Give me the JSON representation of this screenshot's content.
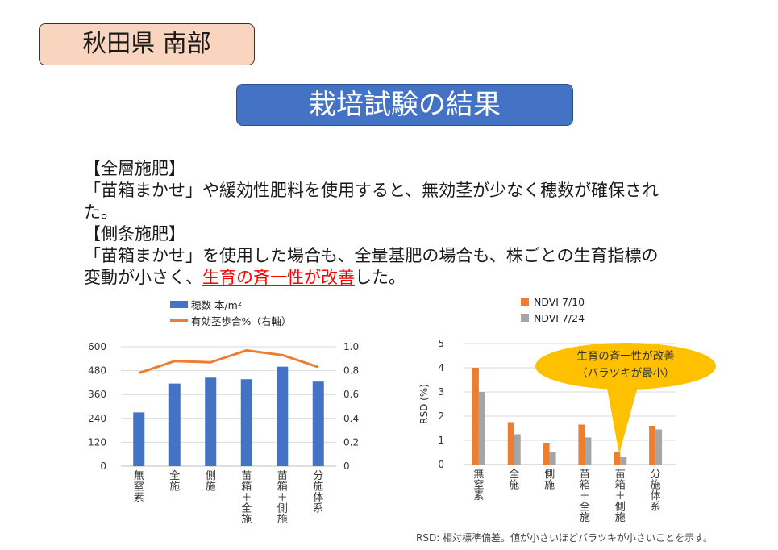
{
  "header": {
    "region_tag": "秋田県 南部",
    "banner_title": "栽培試験の結果"
  },
  "body_text": {
    "heading_1": "【全層施肥】",
    "text_1": "「苗箱まかせ」や緩効性肥料を使用すると、無効茎が少なく穂数が確保された。",
    "heading_2": "【側条施肥】",
    "text_2_a": "「苗箱まかせ」を使用した場合も、全量基肥の場合も、株ごとの生育指標の変動が小さく、",
    "text_2_highlight": "生育の斉一性が改善",
    "text_2_b": "した。"
  },
  "colors": {
    "bar_blue": "#4472c4",
    "line_orange": "#ed7d31",
    "bar_gray": "#a5a5a5",
    "highlight_red": "#ff0000",
    "callout_yellow": "#ffc000"
  },
  "chart_data": [
    {
      "type": "bar",
      "categories": [
        "無窒素",
        "全施",
        "側施",
        "苗箱+全施",
        "苗箱+側施",
        "分施体系"
      ],
      "series": [
        {
          "name": "穂数 本/m²",
          "type": "bar",
          "axis": "left",
          "values": [
            270,
            415,
            445,
            437,
            500,
            425
          ]
        },
        {
          "name": "有効茎歩合%（右軸）",
          "type": "line",
          "axis": "right",
          "values": [
            0.78,
            0.88,
            0.87,
            0.97,
            0.93,
            0.83
          ]
        }
      ],
      "ylim": [
        0,
        600
      ],
      "y_ticks": [
        "0",
        "120",
        "240",
        "360",
        "480",
        "600"
      ],
      "y2lim": [
        0,
        1.0
      ],
      "y2_ticks": [
        "0",
        "0.2",
        "0.4",
        "0.6",
        "0.8",
        "1.0"
      ],
      "legend_position": "top",
      "grid": true
    },
    {
      "type": "bar",
      "categories": [
        "無窒素",
        "全施",
        "側施",
        "苗箱+全施",
        "苗箱+側施",
        "分施体系"
      ],
      "series": [
        {
          "name": "NDVI 7/10",
          "values": [
            4.0,
            1.75,
            0.9,
            1.65,
            0.5,
            1.6
          ]
        },
        {
          "name": "NDVI 7/24",
          "values": [
            3.0,
            1.25,
            0.5,
            1.12,
            0.3,
            1.45
          ]
        }
      ],
      "ylabel": "RSD (%)",
      "ylim": [
        0,
        5
      ],
      "y_ticks": [
        "0",
        "1",
        "2",
        "3",
        "4",
        "5"
      ],
      "legend_position": "top",
      "grid": true,
      "annotation": {
        "line1": "生育の斉一性が改善",
        "line2": "（バラツキが最小）",
        "target_category": "苗箱+側施"
      }
    }
  ],
  "footnote": "RSD: 相対標準偏差。値が小さいほどバラツキが小さいことを示す。"
}
